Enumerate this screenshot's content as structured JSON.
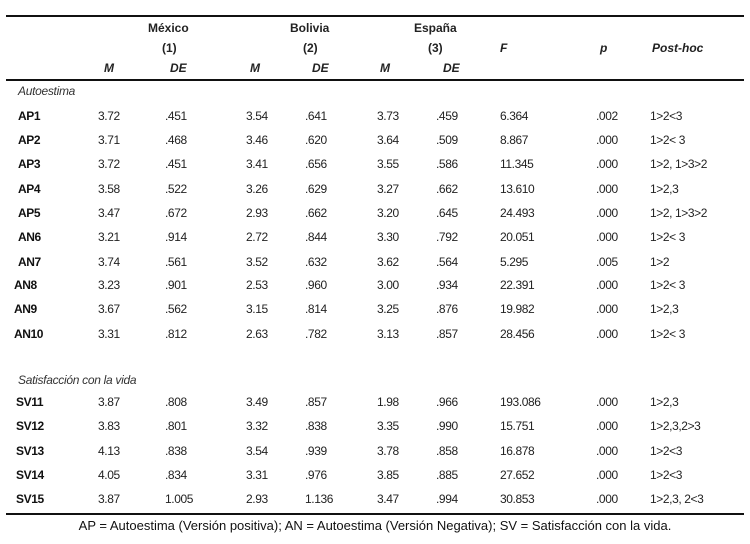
{
  "header": {
    "groups": [
      {
        "name": "México",
        "code": "(1)"
      },
      {
        "name": "Bolivia",
        "code": "(2)"
      },
      {
        "name": "España",
        "code": "(3)"
      }
    ],
    "f_label": "F",
    "p_label": "p",
    "posthoc_label": "Post-hoc",
    "m_label": "M",
    "de_label": "DE"
  },
  "sections": [
    {
      "title": "Autoestima",
      "rows": [
        {
          "item": "AP1",
          "m1": "3.72",
          "de1": ".451",
          "m2": "3.54",
          "de2": ".641",
          "m3": "3.73",
          "de3": ".459",
          "f": "6.364",
          "p": ".002",
          "posthoc": "1>2<3"
        },
        {
          "item": "AP2",
          "m1": "3.71",
          "de1": ".468",
          "m2": "3.46",
          "de2": ".620",
          "m3": "3.64",
          "de3": ".509",
          "f": "8.867",
          "p": ".000",
          "posthoc": "1>2< 3"
        },
        {
          "item": "AP3",
          "m1": "3.72",
          "de1": ".451",
          "m2": "3.41",
          "de2": ".656",
          "m3": "3.55",
          "de3": ".586",
          "f": "11.345",
          "p": ".000",
          "posthoc": "1>2, 1>3>2"
        },
        {
          "item": "AP4",
          "m1": "3.58",
          "de1": ".522",
          "m2": "3.26",
          "de2": ".629",
          "m3": "3.27",
          "de3": ".662",
          "f": "13.610",
          "p": ".000",
          "posthoc": "1>2,3"
        },
        {
          "item": "AP5",
          "m1": "3.47",
          "de1": ".672",
          "m2": "2.93",
          "de2": ".662",
          "m3": "3.20",
          "de3": ".645",
          "f": "24.493",
          "p": ".000",
          "posthoc": "1>2, 1>3>2"
        },
        {
          "item": "AN6",
          "m1": "3.21",
          "de1": ".914",
          "m2": "2.72",
          "de2": ".844",
          "m3": "3.30",
          "de3": ".792",
          "f": "20.051",
          "p": ".000",
          "posthoc": "1>2< 3"
        },
        {
          "item": "AN7",
          "m1": "3.74",
          "de1": ".561",
          "m2": "3.52",
          "de2": ".632",
          "m3": "3.62",
          "de3": ".564",
          "f": "5.295",
          "p": ".005",
          "posthoc": "1>2"
        },
        {
          "item": "AN8",
          "m1": "3.23",
          "de1": ".901",
          "m2": "2.53",
          "de2": ".960",
          "m3": "3.00",
          "de3": ".934",
          "f": "22.391",
          "p": ".000",
          "posthoc": "1>2< 3"
        },
        {
          "item": "AN9",
          "m1": "3.67",
          "de1": ".562",
          "m2": "3.15",
          "de2": ".814",
          "m3": "3.25",
          "de3": ".876",
          "f": "19.982",
          "p": ".000",
          "posthoc": "1>2,3"
        },
        {
          "item": "AN10",
          "m1": "3.31",
          "de1": ".812",
          "m2": "2.63",
          "de2": ".782",
          "m3": "3.13",
          "de3": ".857",
          "f": "28.456",
          "p": ".000",
          "posthoc": "1>2< 3"
        }
      ]
    },
    {
      "title": "Satisfacción con la vida",
      "rows": [
        {
          "item": "SV11",
          "m1": "3.87",
          "de1": ".808",
          "m2": "3.49",
          "de2": ".857",
          "m3": "1.98",
          "de3": ".966",
          "f": "193.086",
          "p": ".000",
          "posthoc": "1>2,3"
        },
        {
          "item": "SV12",
          "m1": "3.83",
          "de1": ".801",
          "m2": "3.32",
          "de2": ".838",
          "m3": "3.35",
          "de3": ".990",
          "f": "15.751",
          "p": ".000",
          "posthoc": "1>2,3,2>3"
        },
        {
          "item": "SV13",
          "m1": "4.13",
          "de1": ".838",
          "m2": "3.54",
          "de2": ".939",
          "m3": "3.78",
          "de3": ".858",
          "f": "16.878",
          "p": ".000",
          "posthoc": "1>2<3"
        },
        {
          "item": "SV14",
          "m1": "4.05",
          "de1": ".834",
          "m2": "3.31",
          "de2": ".976",
          "m3": "3.85",
          "de3": ".885",
          "f": "27.652",
          "p": ".000",
          "posthoc": "1>2<3"
        },
        {
          "item": "SV15",
          "m1": "3.87",
          "de1": "1.005",
          "m2": "2.93",
          "de2": "1.136",
          "m3": "3.47",
          "de3": ".994",
          "f": "30.853",
          "p": ".000",
          "posthoc": "1>2,3, 2<3"
        }
      ]
    }
  ],
  "footnote": "AP = Autoestima (Versión positiva); AN = Autoestima (Versión Negativa); SV = Satisfacción con la vida."
}
